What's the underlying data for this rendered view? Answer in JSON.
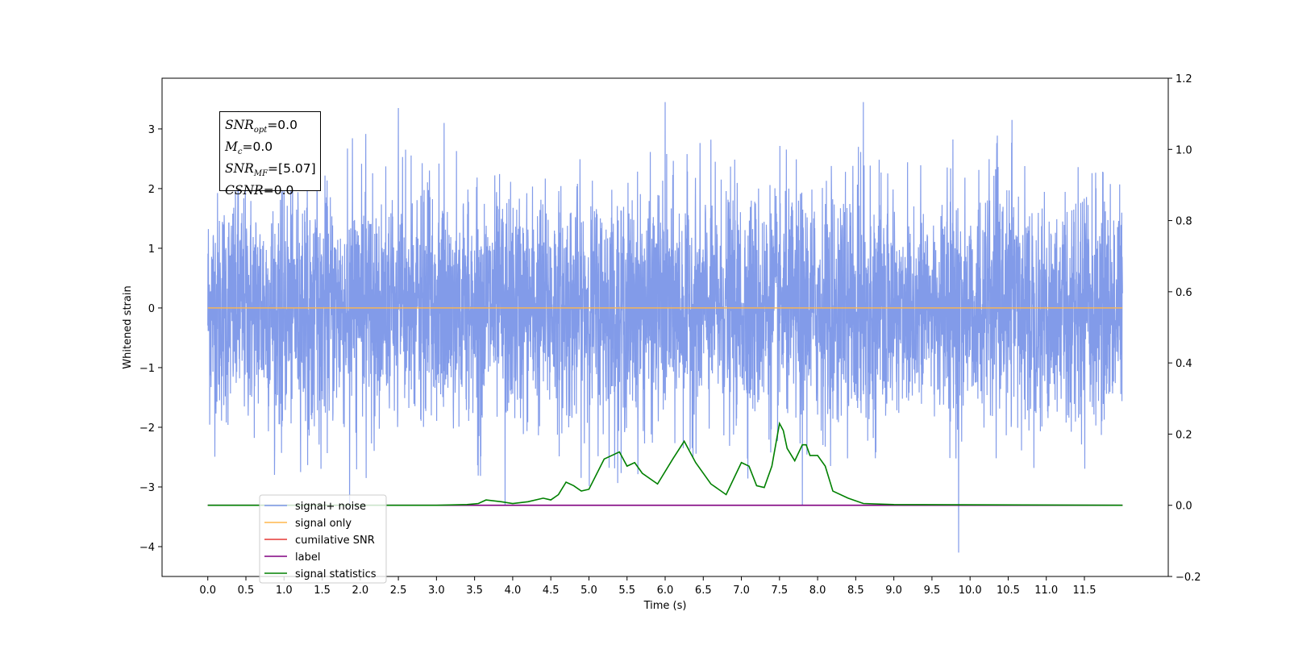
{
  "chart_data": {
    "type": "line",
    "xlabel": "Time (s)",
    "ylabel": "Whitened strain",
    "x_ticks": [
      "0.0",
      "0.5",
      "1.0",
      "1.5",
      "2.0",
      "2.5",
      "3.0",
      "3.5",
      "4.0",
      "4.5",
      "5.0",
      "5.5",
      "6.0",
      "6.5",
      "7.0",
      "7.5",
      "8.0",
      "8.5",
      "9.0",
      "9.5",
      "10.0",
      "10.5",
      "11.0",
      "11.5"
    ],
    "y_ticks": [
      "3",
      "2",
      "1",
      "0",
      "−1",
      "−2",
      "−3",
      "−4"
    ],
    "y2_ticks": [
      "1.2",
      "1.0",
      "0.8",
      "0.6",
      "0.4",
      "0.2",
      "0.0",
      "−0.2"
    ],
    "xlim": [
      -0.6,
      12.6
    ],
    "ylim": [
      -4.5,
      3.85
    ],
    "y2lim": [
      -0.2,
      1.2
    ],
    "grid": false,
    "legend_position": "lower-left",
    "series": [
      {
        "name": "signal+ noise",
        "color": "#7b96e8",
        "axis": "left",
        "note": "dense noise, sampled 0.0–12.0 s, amplitude range approx -4.1 to 3.5",
        "peaks": [
          [
            0.4,
            3.3
          ],
          [
            2.5,
            3.35
          ],
          [
            3.1,
            3.1
          ],
          [
            6.0,
            3.45
          ],
          [
            8.6,
            3.45
          ],
          [
            9.85,
            -4.1
          ],
          [
            1.86,
            -3.4
          ],
          [
            3.9,
            -3.3
          ],
          [
            7.8,
            -3.3
          ],
          [
            10.55,
            3.15
          ]
        ]
      },
      {
        "name": "signal only",
        "color": "#ffb74d",
        "axis": "left",
        "x": [
          0.0,
          12.0
        ],
        "y": [
          0.0,
          0.0
        ]
      },
      {
        "name": "cumilative SNR",
        "color": "#e53935",
        "axis": "right",
        "x": [
          0.0,
          12.0
        ],
        "y": [
          0.0,
          0.0
        ]
      },
      {
        "name": "label",
        "color": "#800080",
        "axis": "right",
        "x": [
          0.0,
          12.0
        ],
        "y": [
          0.0,
          0.0
        ]
      },
      {
        "name": "signal statistics",
        "color": "#008000",
        "axis": "right",
        "x": [
          0.0,
          3.0,
          3.4,
          3.55,
          3.65,
          3.85,
          4.0,
          4.2,
          4.4,
          4.5,
          4.6,
          4.7,
          4.8,
          4.9,
          5.0,
          5.2,
          5.4,
          5.5,
          5.6,
          5.7,
          5.9,
          6.1,
          6.25,
          6.4,
          6.6,
          6.8,
          7.0,
          7.1,
          7.2,
          7.3,
          7.4,
          7.5,
          7.55,
          7.6,
          7.7,
          7.8,
          7.85,
          7.9,
          8.0,
          8.1,
          8.2,
          8.4,
          8.6,
          9.0,
          12.0
        ],
        "y": [
          0.0,
          0.0,
          0.002,
          0.005,
          0.015,
          0.01,
          0.005,
          0.01,
          0.02,
          0.015,
          0.03,
          0.065,
          0.055,
          0.04,
          0.045,
          0.13,
          0.15,
          0.11,
          0.12,
          0.09,
          0.06,
          0.13,
          0.18,
          0.12,
          0.06,
          0.03,
          0.12,
          0.11,
          0.055,
          0.05,
          0.11,
          0.23,
          0.21,
          0.16,
          0.125,
          0.17,
          0.17,
          0.14,
          0.14,
          0.11,
          0.04,
          0.02,
          0.005,
          0.002,
          0.0
        ]
      }
    ],
    "legend_entries": [
      "signal+ noise",
      "signal only",
      "cumilative SNR",
      "label",
      "signal statistics"
    ],
    "annotations": {
      "snr_opt": {
        "name": "SNR",
        "sub": "opt",
        "value": "=0.0"
      },
      "mc": {
        "name": "M",
        "sub": "c",
        "value": "=0.0"
      },
      "snr_mf": {
        "name": "SNR",
        "sub": "MF",
        "value": "=[5.07]"
      },
      "csnr": {
        "name": "CSNR",
        "value": "=0.0"
      }
    }
  }
}
